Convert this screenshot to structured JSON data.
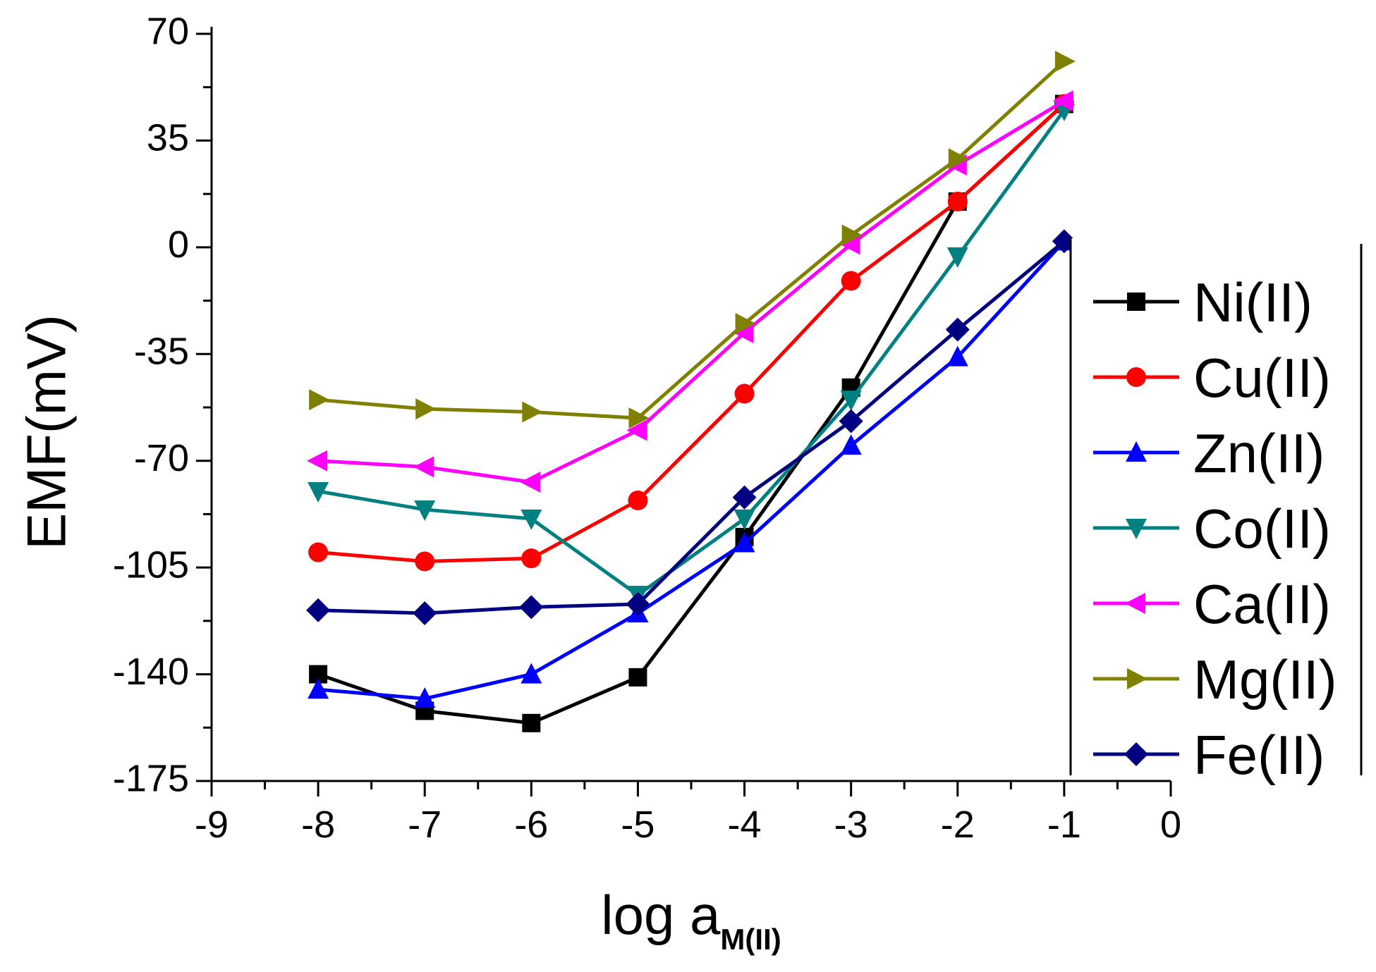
{
  "chart_data": {
    "type": "line",
    "title": "",
    "xlabel": "log a",
    "xlabel_subscript": "M(II)",
    "ylabel": "EMF(mV)",
    "xlim": [
      -9,
      0
    ],
    "ylim": [
      -175,
      70
    ],
    "xticks": [
      -9,
      -8,
      -7,
      -6,
      -5,
      -4,
      -3,
      -2,
      -1,
      0
    ],
    "yticks": [
      70,
      35,
      0,
      -35,
      -70,
      -105,
      -140,
      -175
    ],
    "xtick_labels": [
      "-9",
      "-8",
      "-7",
      "-6",
      "-5",
      "-4",
      "-3",
      "-2",
      "-1",
      "0"
    ],
    "ytick_labels": [
      "70",
      "35",
      "0",
      "-35",
      "-70",
      "-105",
      "-140",
      "-175"
    ],
    "grid": false,
    "legend_position": "right",
    "x": [
      -8,
      -7,
      -6,
      -5,
      -4,
      -3,
      -2,
      -1
    ],
    "series": [
      {
        "name": "Ni(II)",
        "color": "#000000",
        "marker": "square",
        "values": [
          -140,
          -152,
          -156,
          -141,
          -95,
          -46,
          15,
          47
        ]
      },
      {
        "name": "Cu(II)",
        "color": "#ff0000",
        "marker": "circle",
        "values": [
          -100,
          -103,
          -102,
          -83,
          -48,
          -11,
          15,
          47
        ]
      },
      {
        "name": "Zn(II)",
        "color": "#0000ff",
        "marker": "triangle-up",
        "values": [
          -145,
          -148,
          -140,
          -120,
          -97,
          -65,
          -36,
          2
        ]
      },
      {
        "name": "Co(II)",
        "color": "#008080",
        "marker": "triangle-down",
        "values": [
          -80,
          -86,
          -89,
          -114,
          -89,
          -50,
          -3,
          45
        ]
      },
      {
        "name": "Ca(II)",
        "color": "#ff00ff",
        "marker": "triangle-left",
        "values": [
          -70,
          -72,
          -77,
          -60,
          -28,
          1,
          27,
          48
        ]
      },
      {
        "name": "Mg(II)",
        "color": "#808000",
        "marker": "triangle-right",
        "values": [
          -50,
          -53,
          -54,
          -56,
          -25,
          4,
          29,
          61
        ]
      },
      {
        "name": "Fe(II)",
        "color": "#000080",
        "marker": "diamond",
        "values": [
          -119,
          -120,
          -118,
          -117,
          -82,
          -57,
          -27,
          2
        ]
      }
    ]
  }
}
